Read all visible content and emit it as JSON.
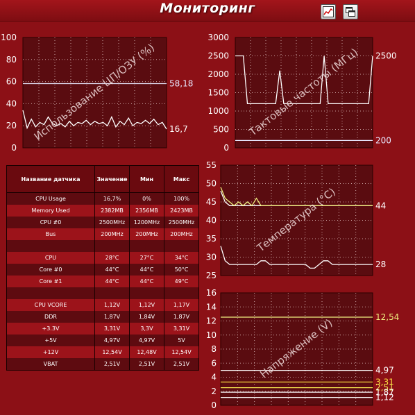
{
  "window": {
    "title": "Мониторинг"
  },
  "toolbar": {
    "buttons": [
      {
        "icon": "line-chart-icon"
      },
      {
        "icon": "windows-icon"
      }
    ]
  },
  "colors": {
    "bg": "#8c1016",
    "plot_bg": "#5a0c10",
    "grid": "#c8a0a0",
    "white_line": "#ffffff",
    "yellow_line": "#f0f080",
    "yellow2": "#ffe040",
    "orange": "#ffb070"
  },
  "chart_data": [
    {
      "type": "line",
      "title": "Использование ЦП/ОЗУ (%)",
      "ylim": [
        0,
        100
      ],
      "yticks": [
        "0",
        "20",
        "40",
        "60",
        "80",
        "100"
      ],
      "series": [
        {
          "name": "CPU Usage",
          "color": "#ffffff",
          "end_label": "16,7",
          "values": [
            34,
            18,
            26,
            19,
            23,
            21,
            28,
            22,
            20,
            22,
            19,
            24,
            20,
            23,
            22,
            25,
            21,
            24,
            22,
            23,
            20,
            28,
            19,
            24,
            21,
            27,
            20,
            23,
            22,
            25,
            22,
            26,
            21,
            23,
            17
          ]
        },
        {
          "name": "Memory Used",
          "color": "#e8e8ff",
          "end_label": "58,18",
          "values": [
            58.2,
            58.2,
            58.2,
            58.2,
            58.2,
            58.2,
            58.2,
            58.2,
            58.2,
            58.2,
            58.2,
            58.2,
            58.2,
            58.2,
            58.2,
            58.2,
            58.2,
            58.2,
            58.2,
            58.2,
            58.2,
            58.2,
            58.2,
            58.2,
            58.2,
            58.2,
            58.2,
            58.2,
            58.2,
            58.2,
            58.2,
            58.2,
            58.2,
            58.2,
            58.18
          ]
        }
      ]
    },
    {
      "type": "line",
      "title": "Тактовые частоты (МГц)",
      "ylim": [
        0,
        3000
      ],
      "yticks": [
        "0",
        "500",
        "1000",
        "1500",
        "2000",
        "2500",
        "3000"
      ],
      "series": [
        {
          "name": "CPU #0",
          "color": "#ffffff",
          "end_label": "2500",
          "values": [
            2500,
            2500,
            2500,
            1200,
            1200,
            1200,
            1200,
            1200,
            1200,
            1200,
            1200,
            2100,
            1200,
            1200,
            1200,
            1200,
            1200,
            1200,
            1200,
            1200,
            1200,
            1200,
            2500,
            1200,
            1200,
            1200,
            1200,
            1200,
            1200,
            1200,
            1200,
            1200,
            1200,
            1200,
            2500
          ]
        },
        {
          "name": "Bus",
          "color": "#e8e8ff",
          "end_label": "200",
          "values": [
            200,
            200,
            200,
            200,
            200,
            200,
            200,
            200,
            200,
            200,
            200,
            200,
            200,
            200,
            200,
            200,
            200,
            200,
            200,
            200,
            200,
            200,
            200,
            200,
            200,
            200,
            200,
            200,
            200,
            200,
            200,
            200,
            200,
            200,
            200
          ]
        }
      ]
    },
    {
      "type": "line",
      "title": "Температура (°C)",
      "ylim": [
        25,
        55
      ],
      "yticks": [
        "25",
        "30",
        "35",
        "40",
        "45",
        "50",
        "55"
      ],
      "series": [
        {
          "name": "Core #0",
          "color": "#ffffff",
          "end_label": "44",
          "values": [
            48,
            45,
            44,
            44,
            44,
            44,
            44,
            44,
            44,
            44,
            44,
            44,
            44,
            44,
            44,
            44,
            44,
            44,
            44,
            44,
            44,
            44,
            44,
            44,
            44,
            44,
            44,
            44,
            44,
            44,
            44,
            44,
            44,
            44,
            44
          ]
        },
        {
          "name": "Core #1",
          "color": "#f0f080",
          "values": [
            49,
            46,
            45,
            44,
            45,
            44,
            45,
            44,
            46,
            44,
            44,
            44,
            44,
            44,
            44,
            44,
            44,
            44,
            44,
            44,
            44,
            44,
            44,
            44,
            44,
            44,
            44,
            44,
            44,
            44,
            44,
            44,
            44,
            44,
            44
          ]
        },
        {
          "name": "CPU",
          "color": "#ffffff",
          "end_label": "28",
          "values": [
            33,
            29,
            28,
            28,
            28,
            28,
            28,
            28,
            28,
            29,
            29,
            28,
            28,
            28,
            28,
            28,
            28,
            28,
            28,
            28,
            27,
            27,
            28,
            29,
            29,
            28,
            28,
            28,
            28,
            28,
            28,
            28,
            28,
            28,
            28
          ]
        }
      ]
    },
    {
      "type": "line",
      "title": "Напряжение (V)",
      "ylim": [
        0,
        16
      ],
      "yticks": [
        "0",
        "2",
        "4",
        "6",
        "8",
        "10",
        "12",
        "14",
        "16"
      ],
      "series": [
        {
          "name": "+12V",
          "color": "#f0f080",
          "end_label": "12,54",
          "values": [
            12.54,
            12.54
          ]
        },
        {
          "name": "+5V",
          "color": "#ffffff",
          "end_label": "4,97",
          "values": [
            4.97,
            4.97
          ]
        },
        {
          "name": "+3.3V",
          "color": "#ffe040",
          "end_label": "3,31",
          "values": [
            3.31,
            3.31
          ]
        },
        {
          "name": "VBAT",
          "color": "#f0e050",
          "end_label": "2,51",
          "values": [
            2.51,
            2.51
          ]
        },
        {
          "name": "DDR",
          "color": "#ffffff",
          "end_label": "1,87",
          "values": [
            1.87,
            1.87
          ]
        },
        {
          "name": "CPU VCORE",
          "color": "#ffffff",
          "end_label": "1,12",
          "values": [
            1.12,
            1.12
          ]
        }
      ]
    }
  ],
  "sensor_table": {
    "headers": [
      "Название датчика",
      "Значение",
      "Мин",
      "Макс"
    ],
    "rows": [
      {
        "name": "CPU Usage",
        "value": "16,7%",
        "min": "0%",
        "max": "100%",
        "style": "c-name"
      },
      {
        "name": "Memory Used",
        "value": "2382MB",
        "min": "2356MB",
        "max": "2423MB",
        "style": "dim"
      },
      {
        "name": "CPU #0",
        "value": "2500MHz",
        "min": "1200MHz",
        "max": "2500MHz",
        "style": "c-name"
      },
      {
        "name": "Bus",
        "value": "200MHz",
        "min": "200MHz",
        "max": "200MHz",
        "style": "dim"
      },
      {
        "name": "",
        "value": "",
        "min": "",
        "max": "",
        "style": "c-name"
      },
      {
        "name": "CPU",
        "value": "28°C",
        "min": "27°C",
        "max": "34°C",
        "style": "c-name"
      },
      {
        "name": "Core #0",
        "value": "44°C",
        "min": "44°C",
        "max": "50°C",
        "style": "dim"
      },
      {
        "name": "Core #1",
        "value": "44°C",
        "min": "44°C",
        "max": "49°C",
        "style": "org"
      },
      {
        "name": "",
        "value": "",
        "min": "",
        "max": "",
        "style": "c-name"
      },
      {
        "name": "CPU VCORE",
        "value": "1,12V",
        "min": "1,12V",
        "max": "1,17V",
        "style": "c-name"
      },
      {
        "name": "DDR",
        "value": "1,87V",
        "min": "1,84V",
        "max": "1,87V",
        "style": "c-name"
      },
      {
        "name": "+3.3V",
        "value": "3,31V",
        "min": "3,3V",
        "max": "3,31V",
        "style": "org"
      },
      {
        "name": "+5V",
        "value": "4,97V",
        "min": "4,97V",
        "max": "5V",
        "style": "c-name"
      },
      {
        "name": "+12V",
        "value": "12,54V",
        "min": "12,48V",
        "max": "12,54V",
        "style": "org"
      },
      {
        "name": "VBAT",
        "value": "2,51V",
        "min": "2,51V",
        "max": "2,51V",
        "style": "yel"
      }
    ]
  }
}
